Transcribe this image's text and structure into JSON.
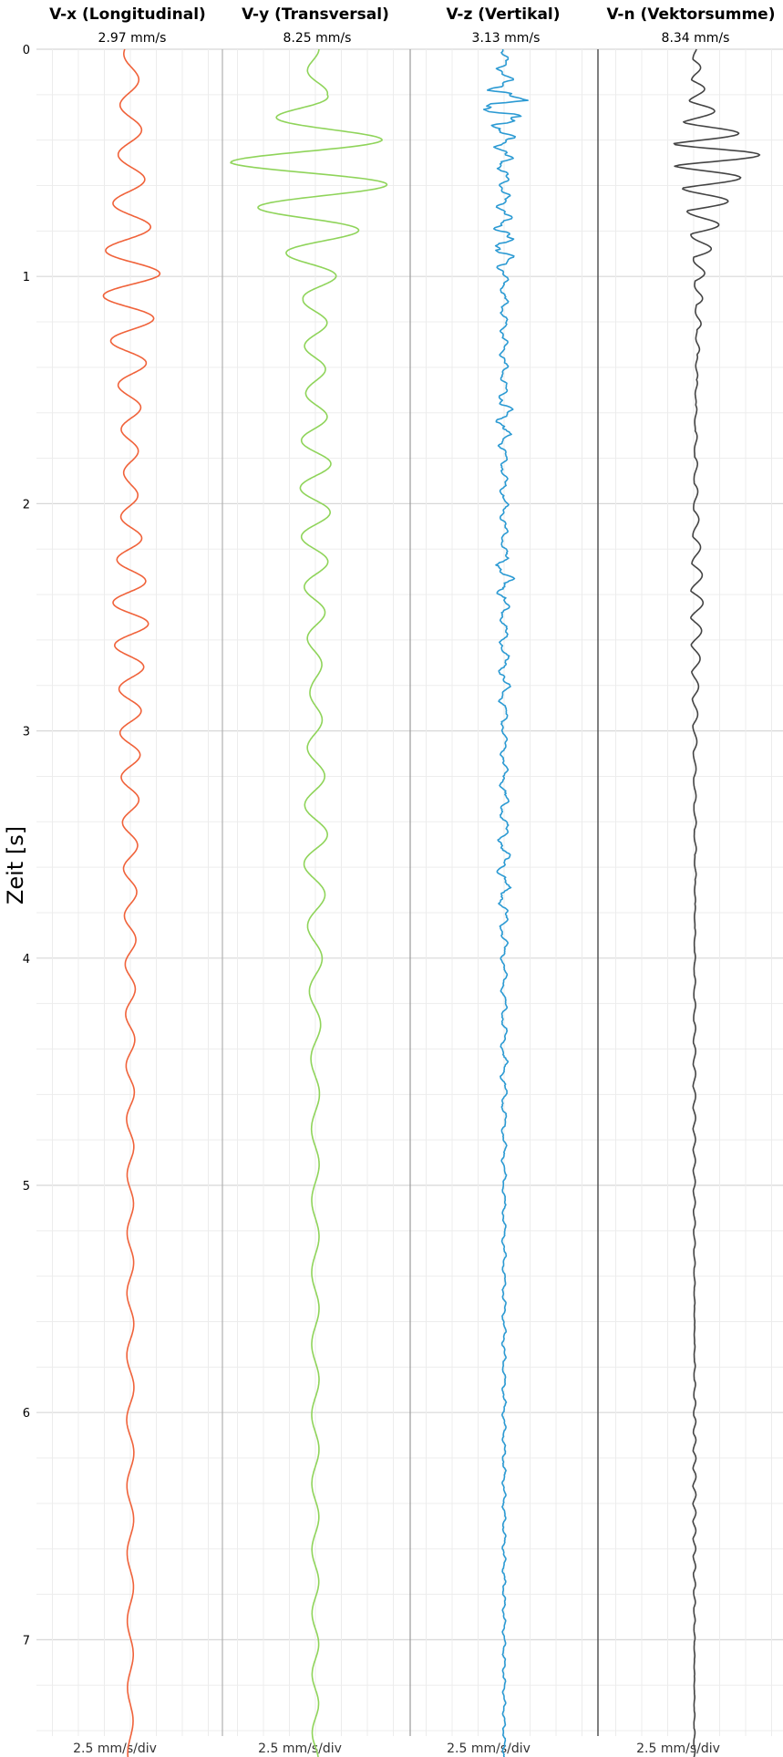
{
  "chart_data": {
    "type": "line",
    "orientation": "vertical-time",
    "ylabel": "Zeit [s]",
    "ylim": [
      0,
      7.53
    ],
    "y_ticks": [
      "0",
      "1",
      "2",
      "3",
      "4",
      "5",
      "6",
      "7"
    ],
    "y_tick_values": [
      0,
      1,
      2,
      3,
      4,
      5,
      6,
      7
    ],
    "grid": true,
    "panels": [
      {
        "name": "V-x (Longitudinal)",
        "peak": "2.97 mm/s",
        "scale": "2.5 mm/s/div",
        "color": "#f0623a",
        "axis_color": "#b0b0b0",
        "envelope": [
          [
            0,
            0.6
          ],
          [
            0.25,
            1.0
          ],
          [
            0.5,
            1.2
          ],
          [
            0.8,
            2.0
          ],
          [
            1.0,
            2.9
          ],
          [
            1.2,
            2.2
          ],
          [
            1.5,
            1.1
          ],
          [
            1.9,
            0.6
          ],
          [
            2.2,
            1.2
          ],
          [
            2.5,
            1.8
          ],
          [
            2.8,
            1.1
          ],
          [
            3.0,
            1.0
          ],
          [
            3.5,
            0.7
          ],
          [
            4.0,
            0.5
          ],
          [
            5.0,
            0.3
          ],
          [
            6.0,
            0.35
          ],
          [
            7.53,
            0.25
          ]
        ]
      },
      {
        "name": "V-y (Transversal)",
        "peak": "8.25 mm/s",
        "scale": "2.5 mm/s/div",
        "color": "#8fd45a",
        "axis_color": "#999999",
        "envelope": [
          [
            0,
            0.4
          ],
          [
            0.2,
            1.2
          ],
          [
            0.4,
            6.5
          ],
          [
            0.5,
            8.2
          ],
          [
            0.7,
            5.5
          ],
          [
            0.9,
            2.8
          ],
          [
            1.1,
            1.2
          ],
          [
            1.5,
            0.9
          ],
          [
            1.8,
            1.5
          ],
          [
            2.1,
            1.4
          ],
          [
            2.5,
            0.9
          ],
          [
            2.8,
            0.5
          ],
          [
            3.5,
            1.2
          ],
          [
            3.9,
            0.7
          ],
          [
            4.5,
            0.4
          ],
          [
            5.0,
            0.35
          ],
          [
            6.0,
            0.35
          ],
          [
            7.53,
            0.3
          ]
        ]
      },
      {
        "name": "V-z (Vertikal)",
        "peak": "3.13 mm/s",
        "scale": "2.5 mm/s/div",
        "color": "#2b9ad3",
        "axis_color": "#bbbbbb",
        "envelope": [
          [
            0,
            0.3
          ],
          [
            0.15,
            1.0
          ],
          [
            0.25,
            3.1
          ],
          [
            0.35,
            1.2
          ],
          [
            0.6,
            0.5
          ],
          [
            0.9,
            1.2
          ],
          [
            1.0,
            0.4
          ],
          [
            1.5,
            0.4
          ],
          [
            1.6,
            0.9
          ],
          [
            1.8,
            0.4
          ],
          [
            2.2,
            0.4
          ],
          [
            2.3,
            1.0
          ],
          [
            2.5,
            0.4
          ],
          [
            2.8,
            0.6
          ],
          [
            3.0,
            0.3
          ],
          [
            3.4,
            0.5
          ],
          [
            3.6,
            0.7
          ],
          [
            4.0,
            0.3
          ],
          [
            4.5,
            0.35
          ],
          [
            5.0,
            0.2
          ],
          [
            6.0,
            0.2
          ],
          [
            7.53,
            0.15
          ]
        ]
      },
      {
        "name": "V-n (Vektorsumme)",
        "peak": "8.34 mm/s",
        "scale": "2.5 mm/s/div",
        "color": "#444444",
        "axis_color": "#555555",
        "envelope": [
          [
            0,
            0.5
          ],
          [
            0.2,
            1.5
          ],
          [
            0.3,
            3.0
          ],
          [
            0.45,
            8.3
          ],
          [
            0.6,
            5.0
          ],
          [
            0.8,
            3.0
          ],
          [
            1.0,
            1.5
          ],
          [
            1.3,
            1.2
          ],
          [
            1.6,
            0.6
          ],
          [
            2.0,
            0.6
          ],
          [
            2.4,
            1.2
          ],
          [
            2.8,
            0.6
          ],
          [
            3.2,
            0.3
          ],
          [
            3.6,
            0.5
          ],
          [
            4.0,
            0.3
          ],
          [
            5.0,
            0.2
          ],
          [
            6.0,
            0.3
          ],
          [
            7.53,
            0.2
          ]
        ]
      }
    ]
  }
}
